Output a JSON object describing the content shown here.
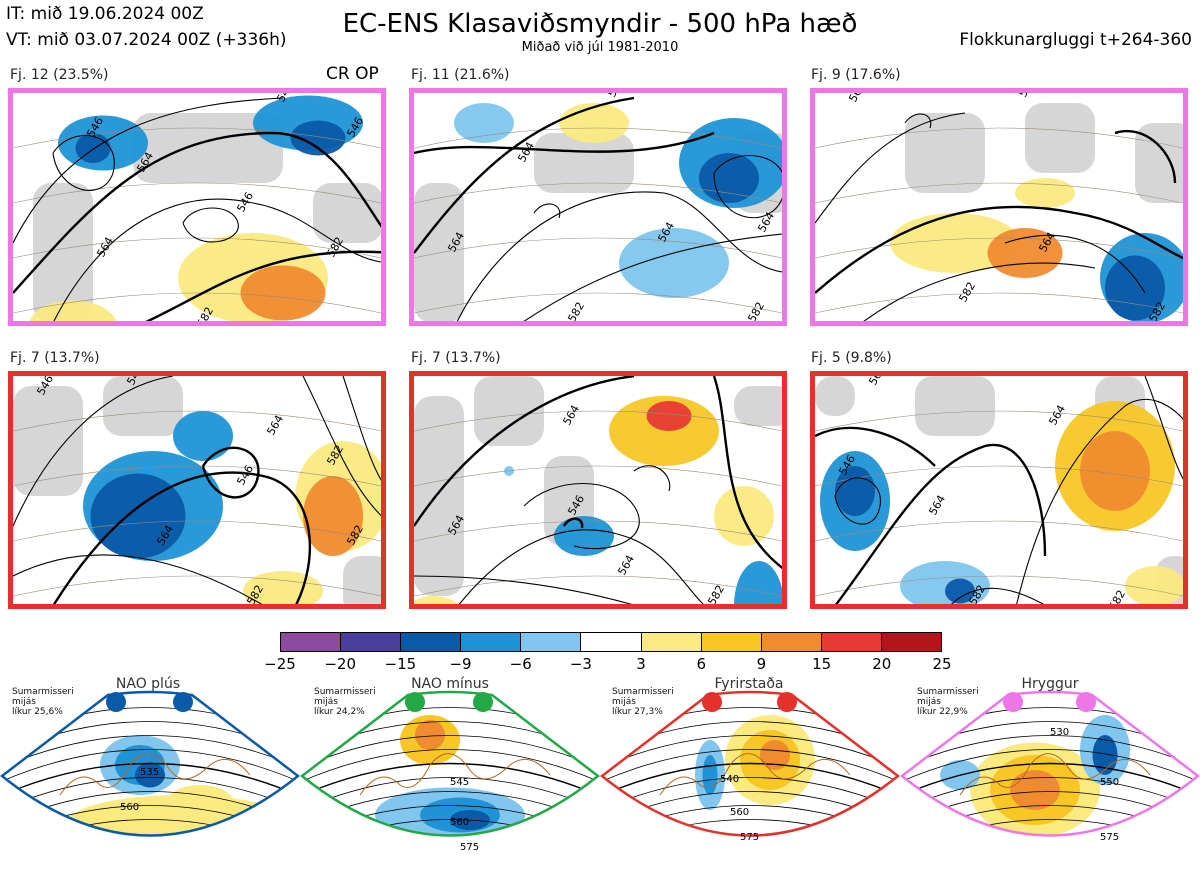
{
  "header": {
    "it": "IT: mið 19.06.2024 00Z",
    "vt": "VT: mið 03.07.2024 00Z  (+336h)",
    "title": "EC-ENS Klasaviðsmyndir - 500 hPa hæð",
    "subtitle": "Miðað við júl 1981-2010",
    "window": "Flokkunargluggi t+264-360"
  },
  "crop_label": "CR OP",
  "panels": [
    {
      "label": "Fj. 12 (23.5%)",
      "border": "#ee77e8",
      "contours": [
        "564",
        "546",
        "582",
        "546",
        "564",
        "546",
        "582",
        "546"
      ]
    },
    {
      "label": "Fj. 11 (21.6%)",
      "border": "#ee77e8",
      "contours": [
        "564",
        "564",
        "582",
        "564",
        "564",
        "582",
        "564"
      ]
    },
    {
      "label": "Fj. 9 (17.6%)",
      "border": "#ee77e8",
      "contours": [
        "564",
        "564",
        "582",
        "546",
        "582"
      ]
    },
    {
      "label": "Fj. 7 (13.7%)",
      "border": "#e5312b",
      "contours": [
        "546",
        "546",
        "564",
        "582",
        "546",
        "564",
        "582",
        "582"
      ]
    },
    {
      "label": "Fj. 7 (13.7%)",
      "border": "#e5312b",
      "contours": [
        "564",
        "546",
        "564",
        "582",
        "564"
      ]
    },
    {
      "label": "Fj. 5 (9.8%)",
      "border": "#e5312b",
      "contours": [
        "564",
        "546",
        "564",
        "582",
        "564",
        "582"
      ]
    }
  ],
  "colorbar": {
    "ticks": [
      "−25",
      "−20",
      "−15",
      "−9",
      "−6",
      "−3",
      "3",
      "6",
      "9",
      "15",
      "20",
      "25"
    ],
    "colors": [
      "#8c4b9e",
      "#4a3f9c",
      "#0a5aa8",
      "#1f93d6",
      "#80c6ee",
      "#ffffff",
      "#fbea7f",
      "#f8c726",
      "#f08b2f",
      "#e73a35",
      "#b2161b"
    ]
  },
  "regimes": [
    {
      "name": "NAO plús",
      "info": [
        "Sumarmisseri",
        "mijás",
        "líkur 25,6%"
      ],
      "color": "#0a5aa8",
      "contours": [
        "535",
        "560"
      ]
    },
    {
      "name": "NAO mínus",
      "info": [
        "Sumarmisseri",
        "mijás",
        "líkur 24,2%"
      ],
      "color": "#22a845",
      "contours": [
        "545",
        "560",
        "575"
      ]
    },
    {
      "name": "Fyrirstaða",
      "info": [
        "Sumarmisseri",
        "mijás",
        "líkur 27,3%"
      ],
      "color": "#e5312b",
      "contours": [
        "540",
        "560",
        "575"
      ]
    },
    {
      "name": "Hryggur",
      "info": [
        "Sumarmisseri",
        "mijás",
        "líkur 22,9%"
      ],
      "color": "#ee77e8",
      "contours": [
        "530",
        "550",
        "575"
      ]
    }
  ]
}
